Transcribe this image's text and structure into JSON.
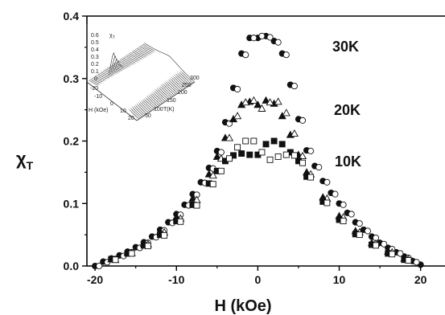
{
  "chart_data": {
    "type": "scatter",
    "xlabel": "H (kOe)",
    "ylabel": "χ",
    "ylabel_sub": "T",
    "xlim": [
      -21,
      23
    ],
    "ylim": [
      0,
      0.4
    ],
    "x_ticks": [
      "-20",
      "-10",
      "0",
      "10",
      "20"
    ],
    "y_ticks": [
      "0.0",
      "0.1",
      "0.2",
      "0.3",
      "0.4"
    ],
    "grid": false,
    "series": [
      {
        "name": "30K",
        "curves": [
          {
            "marker": "filled-circle",
            "offset": 0.0,
            "x": [
              -20,
              -19,
              -18,
              -17,
              -16,
              -15,
              -14,
              -13,
              -12,
              -11,
              -10,
              -9,
              -8,
              -7,
              -6,
              -5,
              -4,
              -3,
              -2,
              -1,
              0,
              1,
              2,
              3,
              4,
              5,
              6,
              7,
              8,
              9,
              10,
              11,
              12,
              13,
              14,
              15,
              16,
              17,
              18,
              19,
              20
            ],
            "y": [
              0.0,
              0.007,
              0.012,
              0.017,
              0.023,
              0.03,
              0.038,
              0.047,
              0.058,
              0.07,
              0.083,
              0.098,
              0.115,
              0.134,
              0.157,
              0.184,
              0.23,
              0.285,
              0.34,
              0.365,
              0.365,
              0.368,
              0.36,
              0.34,
              0.29,
              0.235,
              0.185,
              0.16,
              0.136,
              0.117,
              0.1,
              0.085,
              0.07,
              0.058,
              0.047,
              0.037,
              0.029,
              0.022,
              0.015,
              0.008,
              0.002
            ]
          },
          {
            "marker": "open-circle",
            "offset": 0.5,
            "x": [
              -20,
              -19,
              -18,
              -17,
              -16,
              -15,
              -14,
              -13,
              -12,
              -11,
              -10,
              -9,
              -8,
              -7,
              -6,
              -5,
              -4,
              -3,
              -2,
              -1,
              0,
              1,
              2,
              3,
              4,
              5,
              6,
              7,
              8,
              9,
              10,
              11,
              12,
              13,
              14,
              15,
              16,
              17,
              18,
              19
            ],
            "y": [
              0.0,
              0.006,
              0.011,
              0.016,
              0.022,
              0.029,
              0.037,
              0.046,
              0.057,
              0.069,
              0.082,
              0.097,
              0.114,
              0.133,
              0.156,
              0.182,
              0.228,
              0.283,
              0.338,
              0.365,
              0.368,
              0.366,
              0.358,
              0.338,
              0.288,
              0.233,
              0.184,
              0.158,
              0.134,
              0.115,
              0.098,
              0.083,
              0.068,
              0.056,
              0.045,
              0.035,
              0.027,
              0.02,
              0.013,
              0.006
            ]
          }
        ]
      },
      {
        "name": "20K",
        "curves": [
          {
            "marker": "filled-triangle",
            "offset": 0.0,
            "x": [
              -18,
              -16,
              -14,
              -12,
              -10,
              -8,
              -6,
              -5,
              -4,
              -3,
              -2,
              -1,
              0,
              1,
              2,
              3,
              4,
              5,
              6,
              8,
              10,
              12,
              14,
              16,
              18
            ],
            "y": [
              0.011,
              0.022,
              0.036,
              0.055,
              0.078,
              0.108,
              0.147,
              0.175,
              0.205,
              0.235,
              0.258,
              0.263,
              0.258,
              0.265,
              0.26,
              0.24,
              0.21,
              0.178,
              0.15,
              0.11,
              0.08,
              0.056,
              0.037,
              0.023,
              0.012
            ]
          },
          {
            "marker": "open-triangle",
            "offset": 0.5,
            "x": [
              -18,
              -16,
              -14,
              -12,
              -10,
              -8,
              -6,
              -5,
              -4,
              -3,
              -2,
              -1,
              0,
              1,
              2,
              3,
              4,
              5,
              6,
              8,
              10,
              12,
              14,
              16,
              18
            ],
            "y": [
              0.01,
              0.021,
              0.035,
              0.054,
              0.076,
              0.106,
              0.145,
              0.172,
              0.205,
              0.24,
              0.262,
              0.265,
              0.252,
              0.262,
              0.263,
              0.245,
              0.212,
              0.176,
              0.147,
              0.108,
              0.078,
              0.054,
              0.036,
              0.022,
              0.011
            ]
          }
        ]
      },
      {
        "name": "10K",
        "curves": [
          {
            "marker": "filled-square",
            "offset": 0.0,
            "x": [
              -18,
              -16,
              -14,
              -12,
              -10,
              -8,
              -6,
              -5,
              -4,
              -3,
              -2,
              -1,
              0,
              1,
              2,
              3,
              4,
              5,
              6,
              8,
              10,
              12,
              14,
              16,
              18
            ],
            "y": [
              0.011,
              0.02,
              0.033,
              0.05,
              0.072,
              0.098,
              0.132,
              0.152,
              0.168,
              0.177,
              0.18,
              0.178,
              0.178,
              0.195,
              0.2,
              0.195,
              0.182,
              0.168,
              0.143,
              0.103,
              0.074,
              0.051,
              0.034,
              0.02,
              0.01
            ]
          },
          {
            "marker": "open-square",
            "offset": 0.5,
            "x": [
              -18,
              -16,
              -14,
              -12,
              -10,
              -8,
              -6,
              -5,
              -4,
              -3,
              -2,
              -1,
              0,
              1,
              2,
              3,
              4,
              5,
              6,
              8,
              10,
              12,
              14,
              16,
              18
            ],
            "y": [
              0.01,
              0.02,
              0.032,
              0.049,
              0.071,
              0.097,
              0.131,
              0.152,
              0.172,
              0.19,
              0.2,
              0.2,
              0.182,
              0.17,
              0.175,
              0.178,
              0.177,
              0.165,
              0.142,
              0.101,
              0.072,
              0.05,
              0.033,
              0.019,
              0.009
            ]
          }
        ]
      }
    ],
    "inset": {
      "type": "surface3d",
      "zlabel": "χ",
      "zlabel_sub": "T",
      "z_ticks": [
        "0.6",
        "0.5",
        "0.4",
        "0.3",
        "0.2",
        "0.1",
        "0"
      ],
      "h_ticks": [
        "-20",
        "-10",
        "0",
        "10",
        "20"
      ],
      "h_label": "H (kOe)",
      "t_ticks": [
        "50",
        "100",
        "150",
        "200",
        "250",
        "300"
      ],
      "t_label": "T(K)"
    }
  }
}
